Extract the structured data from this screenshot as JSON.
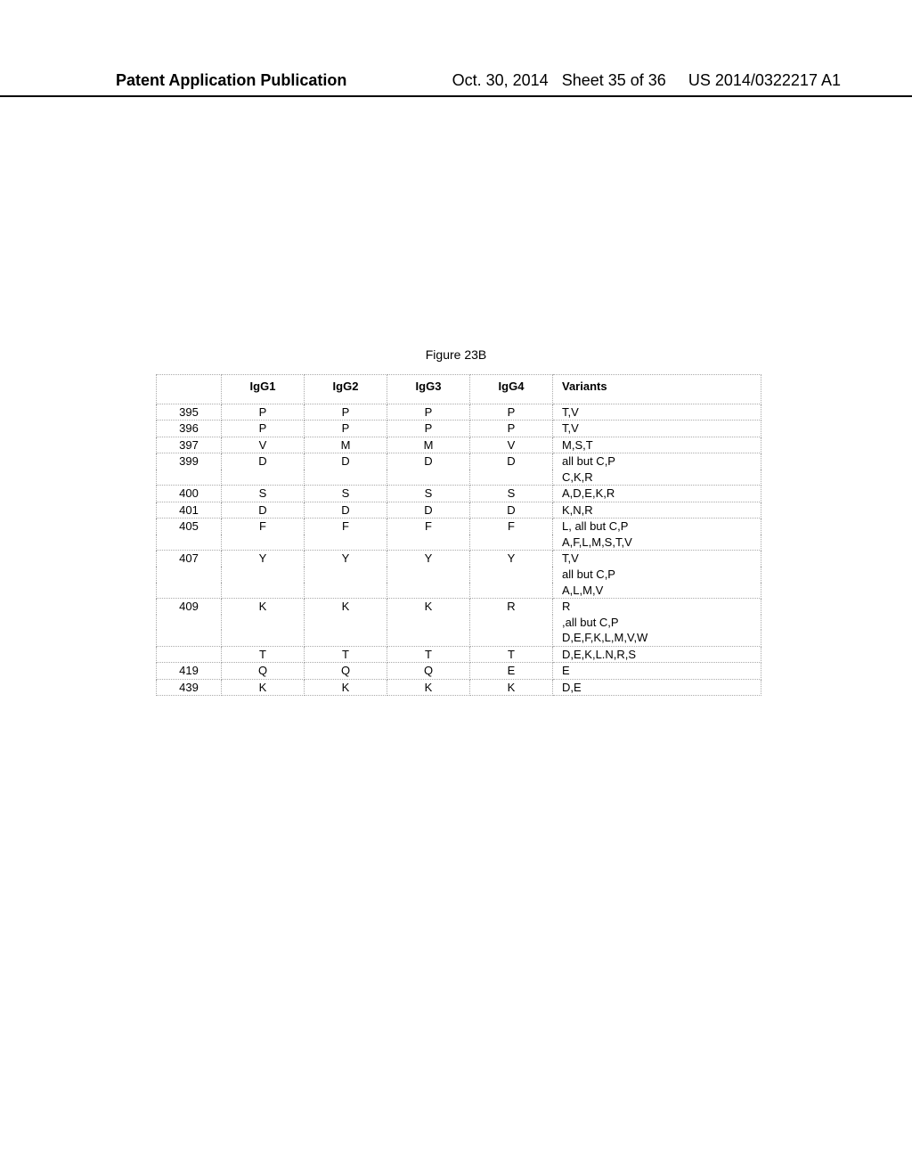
{
  "header": {
    "left": "Patent Application Publication",
    "date": "Oct. 30, 2014",
    "sheet": "Sheet 35 of 36",
    "docnum": "US 2014/0322217 A1"
  },
  "figure_title": "Figure 23B",
  "table": {
    "columns": [
      "",
      "IgG1",
      "IgG2",
      "IgG3",
      "IgG4",
      "Variants"
    ],
    "col_classes": [
      "c-pos",
      "c-ig",
      "c-ig",
      "c-ig",
      "c-ig",
      "c-var"
    ],
    "rows": [
      {
        "cells": [
          "395",
          "P",
          "P",
          "P",
          "P",
          "T,V"
        ]
      },
      {
        "cells": [
          "396",
          "P",
          "P",
          "P",
          "P",
          "T,V"
        ]
      },
      {
        "cells": [
          "397",
          "V",
          "M",
          "M",
          "V",
          "M,S,T"
        ]
      },
      {
        "cells": [
          "399",
          "D",
          "D",
          "D",
          "D",
          "all but C,P"
        ],
        "continue_below": true
      },
      {
        "cells": [
          "",
          "",
          "",
          "",
          "",
          "C,K,R"
        ],
        "continue_above": true
      },
      {
        "cells": [
          "400",
          "S",
          "S",
          "S",
          "S",
          "A,D,E,K,R"
        ]
      },
      {
        "cells": [
          "401",
          "D",
          "D",
          "D",
          "D",
          "K,N,R"
        ]
      },
      {
        "cells": [
          "405",
          "F",
          "F",
          "F",
          "F",
          "L, all but C,P"
        ],
        "continue_below": true
      },
      {
        "cells": [
          "",
          "",
          "",
          "",
          "",
          "A,F,L,M,S,T,V"
        ],
        "continue_above": true
      },
      {
        "cells": [
          "407",
          "Y",
          "Y",
          "Y",
          "Y",
          "T,V"
        ],
        "continue_below": true
      },
      {
        "cells": [
          "",
          "",
          "",
          "",
          "",
          "all but C,P"
        ],
        "continue_above": true,
        "continue_below": true
      },
      {
        "cells": [
          "",
          "",
          "",
          "",
          "",
          "A,L,M,V"
        ],
        "continue_above": true
      },
      {
        "cells": [
          "409",
          "K",
          "K",
          "K",
          "R",
          "R"
        ],
        "continue_below": true
      },
      {
        "cells": [
          "",
          "",
          "",
          "",
          "",
          ",all but C,P"
        ],
        "continue_above": true,
        "continue_below": true
      },
      {
        "cells": [
          "",
          "",
          "",
          "",
          "",
          "D,E,F,K,L,M,V,W"
        ],
        "continue_above": true
      },
      {
        "cells": [
          "",
          "T",
          "T",
          "T",
          "T",
          "D,E,K,L.N,R,S"
        ]
      },
      {
        "cells": [
          "419",
          "Q",
          "Q",
          "Q",
          "E",
          "E"
        ]
      },
      {
        "cells": [
          "439",
          "K",
          "K",
          "K",
          "K",
          "D,E"
        ]
      }
    ]
  }
}
